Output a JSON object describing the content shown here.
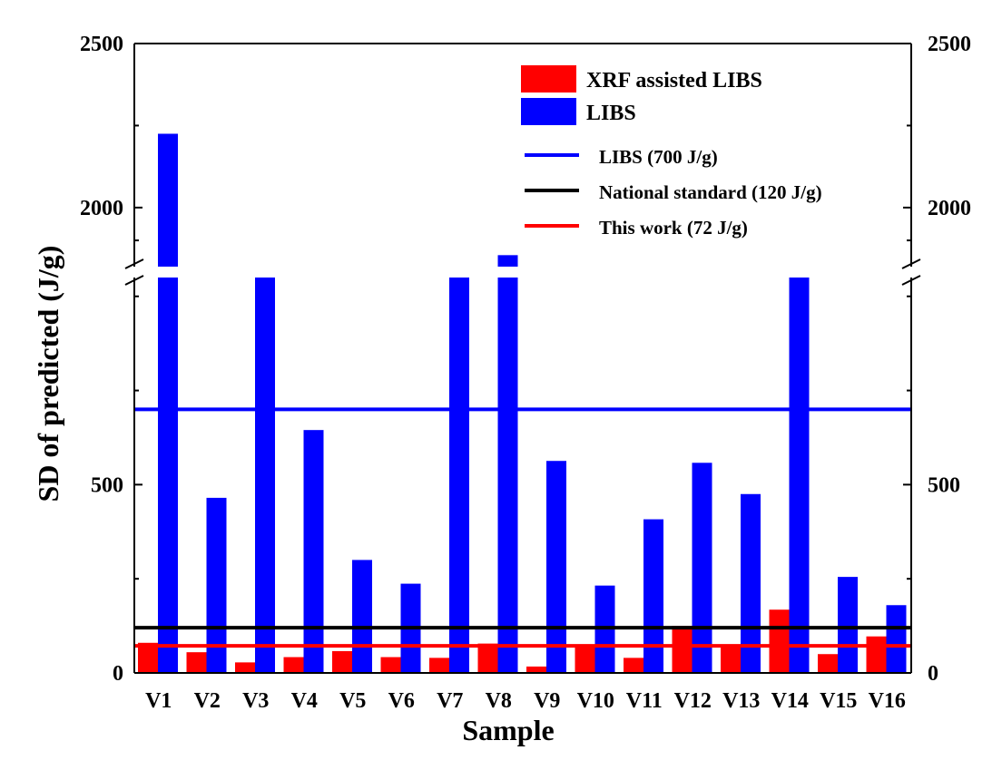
{
  "chart_data": {
    "type": "bar",
    "xlabel": "Sample",
    "ylabel": "SD of predicted (J/g)",
    "categories": [
      "V1",
      "V2",
      "V3",
      "V4",
      "V5",
      "V6",
      "V7",
      "V8",
      "V9",
      "V10",
      "V11",
      "V12",
      "V13",
      "V14",
      "V15",
      "V16"
    ],
    "y_axis": {
      "segments": [
        [
          0,
          1050
        ],
        [
          1820,
          2500
        ]
      ],
      "lower_ticks": [
        "0",
        "500"
      ],
      "upper_ticks": [
        "2000",
        "2500"
      ],
      "axis_break": true,
      "mirrored_right_axis": true
    },
    "series": [
      {
        "name": "XRF assisted LIBS",
        "color": "#ff0000",
        "values": [
          80,
          55,
          28,
          42,
          58,
          42,
          40,
          78,
          17,
          73,
          40,
          125,
          75,
          168,
          50,
          97
        ]
      },
      {
        "name": "LIBS",
        "color": "#0000ff",
        "values": [
          2225,
          465,
          1795,
          645,
          300,
          237,
          1795,
          1855,
          563,
          232,
          408,
          558,
          475,
          1795,
          255,
          180
        ]
      }
    ],
    "reference_lines": [
      {
        "name": "LIBS (700 J/g)",
        "value": 700,
        "color": "#0000ff"
      },
      {
        "name": "National standard (120 J/g)",
        "value": 120,
        "color": "#000000"
      },
      {
        "name": "This work (72 J/g)",
        "value": 72,
        "color": "#ff0000"
      }
    ],
    "legend_position": "top-right",
    "grid": false
  }
}
